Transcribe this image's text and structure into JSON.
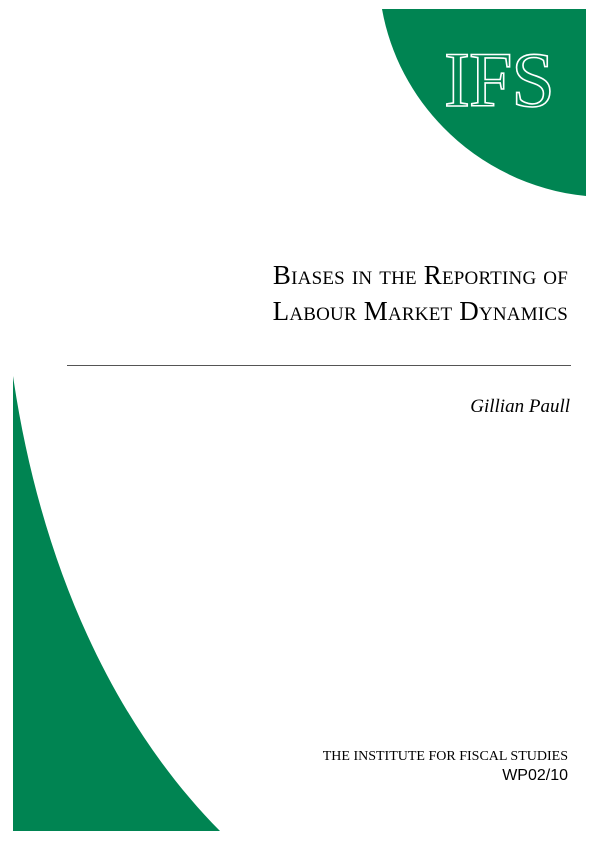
{
  "colors": {
    "brand_green": "#008452",
    "rule": "#555555"
  },
  "logo": {
    "text": "IFS"
  },
  "title": {
    "line1": "Biases in the Reporting of",
    "line2": "Labour Market Dynamics"
  },
  "author": "Gillian Paull",
  "publisher": "THE INSTITUTE FOR FISCAL STUDIES",
  "paper_id": "WP02/10"
}
